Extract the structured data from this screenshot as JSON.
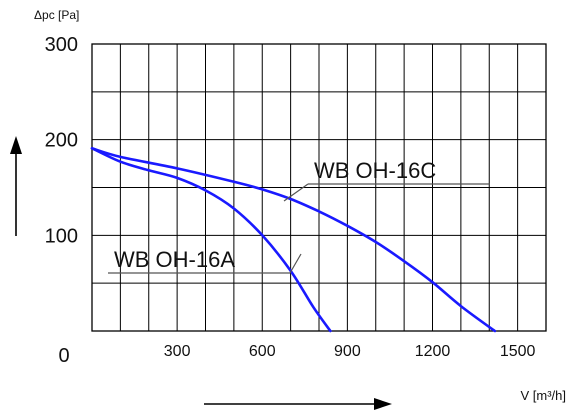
{
  "chart_data": {
    "type": "line",
    "ylabel": "Δpc [Pa]",
    "xlabel": "V [m³/h]",
    "xlim": [
      0,
      1600
    ],
    "ylim": [
      0,
      300
    ],
    "x_origin_label": "0",
    "x_ticks": [
      300,
      600,
      900,
      1200,
      1500
    ],
    "y_ticks": [
      100,
      200,
      300
    ],
    "grid": true,
    "colors": {
      "curve": "#1a1aff",
      "grid": "#000000",
      "leader": "#555555"
    },
    "series": [
      {
        "name": "WB OH-16A",
        "x": [
          0,
          100,
          200,
          300,
          400,
          500,
          600,
          700,
          780,
          840
        ],
        "y": [
          191,
          177,
          168,
          160,
          147,
          128,
          100,
          63,
          25,
          0
        ]
      },
      {
        "name": "WB OH-16C",
        "x": [
          0,
          100,
          300,
          500,
          600,
          700,
          800,
          900,
          1000,
          1100,
          1200,
          1300,
          1420
        ],
        "y": [
          191,
          182,
          170,
          156,
          148,
          138,
          125,
          110,
          93,
          73,
          51,
          26,
          0
        ]
      }
    ]
  }
}
